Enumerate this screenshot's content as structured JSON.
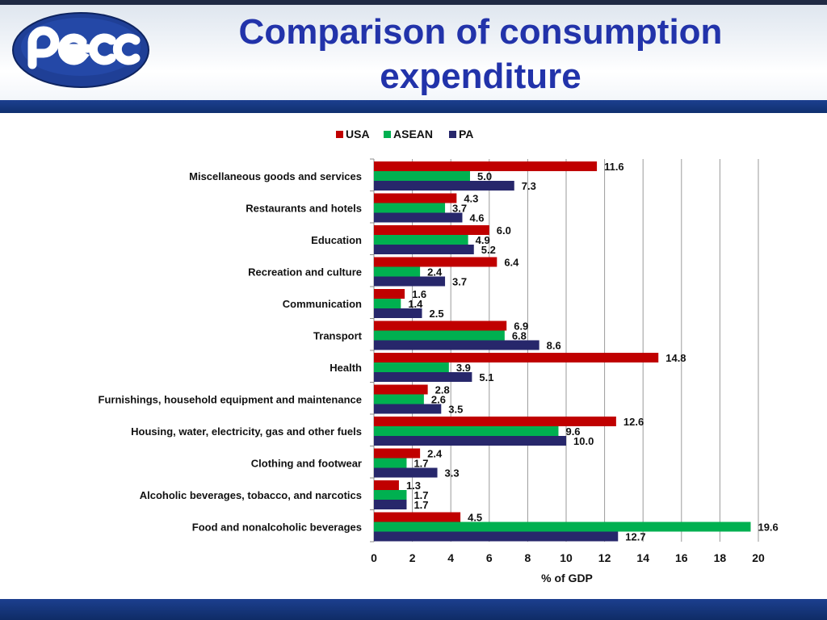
{
  "header": {
    "title_line1": "Comparison of consumption",
    "title_line2": "expenditure",
    "logo_text": "pecc"
  },
  "colors": {
    "title": "#2233aa",
    "band": "#1c3f8f",
    "usa": "#c00000",
    "asean": "#00b050",
    "pa": "#27276b"
  },
  "chart_data": {
    "type": "bar",
    "orientation": "horizontal",
    "xlabel": "% of GDP",
    "ylabel": "",
    "xlim": [
      0,
      20
    ],
    "xticks": [
      0,
      2,
      4,
      6,
      8,
      10,
      12,
      14,
      16,
      18,
      20
    ],
    "grid": true,
    "legend": "top-center",
    "categories": [
      "Miscellaneous goods and services",
      "Restaurants and hotels",
      "Education",
      "Recreation and culture",
      "Communication",
      "Transport",
      "Health",
      "Furnishings, household equipment and maintenance",
      "Housing, water, electricity, gas and other fuels",
      "Clothing and footwear",
      "Alcoholic beverages, tobacco, and narcotics",
      "Food and nonalcoholic beverages"
    ],
    "series": [
      {
        "name": "USA",
        "color": "#c00000",
        "values": [
          11.6,
          4.3,
          6.0,
          6.4,
          1.6,
          6.9,
          14.8,
          2.8,
          12.6,
          2.4,
          1.3,
          4.5
        ],
        "labels": [
          "11.6",
          "4.3",
          "6.0",
          "6.4",
          "1.6",
          "6.9",
          "14.8",
          "2.8",
          "12.6",
          "2.4",
          "1.3",
          "4.5"
        ]
      },
      {
        "name": "ASEAN",
        "color": "#00b050",
        "values": [
          5.0,
          3.7,
          4.9,
          2.4,
          1.4,
          6.8,
          3.9,
          2.6,
          9.6,
          1.7,
          1.7,
          19.6
        ],
        "labels": [
          "5.0",
          "3.7",
          "4.9",
          "2.4",
          "1.4",
          "6.8",
          "3.9",
          "2.6",
          "9.6",
          "1.7",
          "1.7",
          "19.6"
        ]
      },
      {
        "name": "PA",
        "color": "#27276b",
        "values": [
          7.3,
          4.6,
          5.2,
          3.7,
          2.5,
          8.6,
          5.1,
          3.5,
          10.0,
          3.3,
          1.7,
          12.7
        ],
        "labels": [
          "7.3",
          "4.6",
          "5.2",
          "3.7",
          "2.5",
          "8.6",
          "5.1",
          "3.5",
          "10.0",
          "3.3",
          "1.7",
          "12.7"
        ]
      }
    ]
  }
}
